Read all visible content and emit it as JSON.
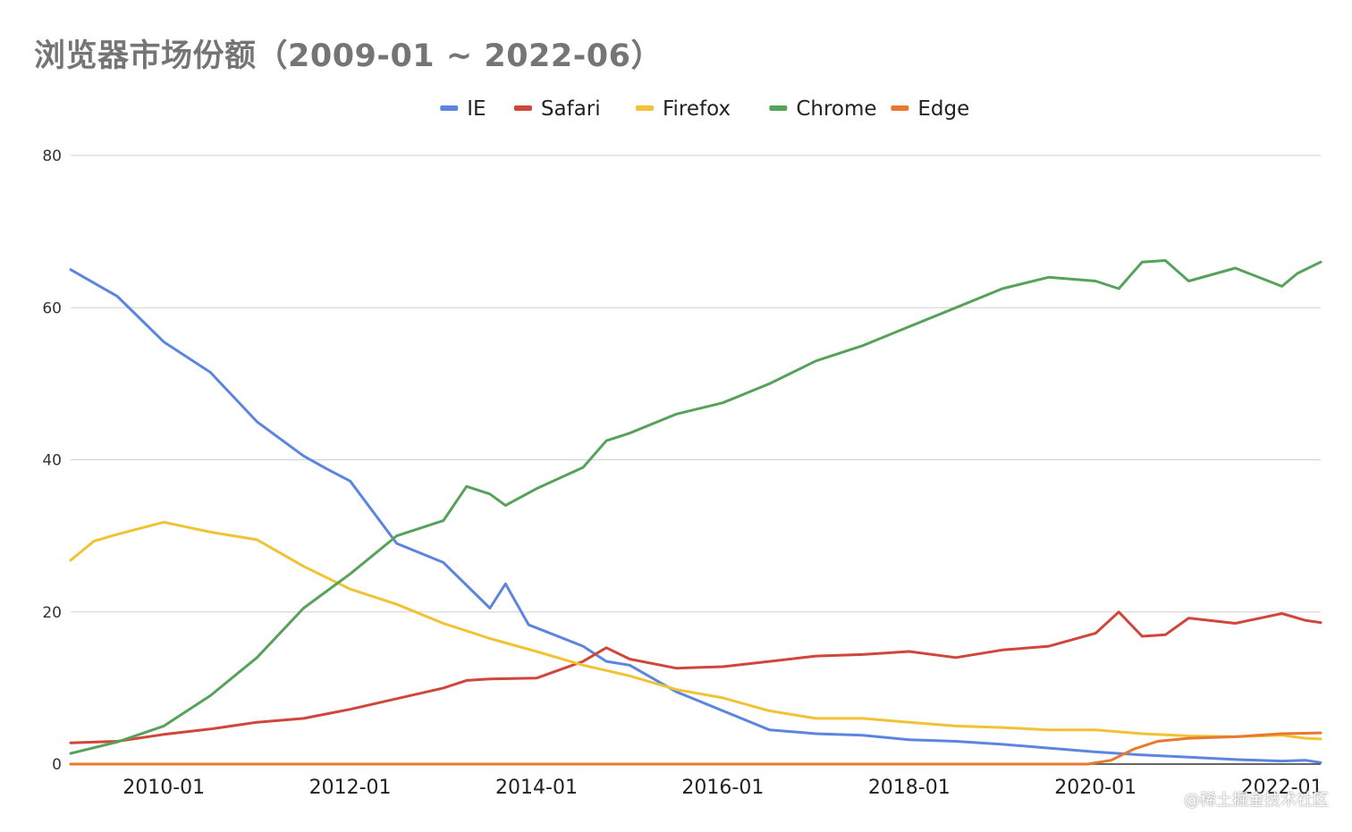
{
  "chart_data": {
    "type": "line",
    "title": "浏览器市场份额（2009-01 ~ 2022-06）",
    "xlabel": "",
    "ylabel": "",
    "x_start": "2009-01",
    "x_end": "2022-06",
    "x_tick_labels": [
      "2010-01",
      "2012-01",
      "2014-01",
      "2016-01",
      "2018-01",
      "2020-01",
      "2022-01"
    ],
    "y_ticks": [
      0,
      20,
      40,
      60,
      80
    ],
    "ylim": [
      0,
      80
    ],
    "grid": true,
    "legend_position": "top",
    "series": [
      {
        "name": "IE",
        "color": "#5b85df",
        "points": [
          [
            "2009-01",
            65.0
          ],
          [
            "2009-07",
            61.5
          ],
          [
            "2010-01",
            55.5
          ],
          [
            "2010-07",
            51.5
          ],
          [
            "2011-01",
            45.0
          ],
          [
            "2011-07",
            40.5
          ],
          [
            "2011-10",
            38.8
          ],
          [
            "2012-01",
            37.2
          ],
          [
            "2012-07",
            29.0
          ],
          [
            "2013-01",
            26.5
          ],
          [
            "2013-07",
            20.5
          ],
          [
            "2013-09",
            23.7
          ],
          [
            "2013-12",
            18.3
          ],
          [
            "2014-07",
            15.5
          ],
          [
            "2014-10",
            13.5
          ],
          [
            "2015-01",
            13.0
          ],
          [
            "2015-07",
            9.5
          ],
          [
            "2016-01",
            7.0
          ],
          [
            "2016-07",
            4.5
          ],
          [
            "2017-01",
            4.0
          ],
          [
            "2017-07",
            3.8
          ],
          [
            "2018-01",
            3.2
          ],
          [
            "2018-07",
            3.0
          ],
          [
            "2019-01",
            2.6
          ],
          [
            "2019-07",
            2.1
          ],
          [
            "2020-01",
            1.6
          ],
          [
            "2020-07",
            1.2
          ],
          [
            "2021-01",
            0.9
          ],
          [
            "2021-07",
            0.6
          ],
          [
            "2022-01",
            0.4
          ],
          [
            "2022-04",
            0.5
          ],
          [
            "2022-06",
            0.2
          ]
        ]
      },
      {
        "name": "Safari",
        "color": "#d0463a",
        "points": [
          [
            "2009-01",
            2.8
          ],
          [
            "2009-07",
            3.0
          ],
          [
            "2010-01",
            3.9
          ],
          [
            "2010-07",
            4.6
          ],
          [
            "2011-01",
            5.5
          ],
          [
            "2011-07",
            6.0
          ],
          [
            "2012-01",
            7.2
          ],
          [
            "2012-07",
            8.6
          ],
          [
            "2013-01",
            10.0
          ],
          [
            "2013-04",
            11.0
          ],
          [
            "2013-07",
            11.2
          ],
          [
            "2014-01",
            11.3
          ],
          [
            "2014-07",
            13.5
          ],
          [
            "2014-10",
            15.3
          ],
          [
            "2015-01",
            13.8
          ],
          [
            "2015-07",
            12.6
          ],
          [
            "2016-01",
            12.8
          ],
          [
            "2016-07",
            13.5
          ],
          [
            "2017-01",
            14.2
          ],
          [
            "2017-07",
            14.4
          ],
          [
            "2018-01",
            14.8
          ],
          [
            "2018-07",
            14.0
          ],
          [
            "2019-01",
            15.0
          ],
          [
            "2019-07",
            15.5
          ],
          [
            "2020-01",
            17.2
          ],
          [
            "2020-04",
            20.0
          ],
          [
            "2020-07",
            16.8
          ],
          [
            "2020-10",
            17.0
          ],
          [
            "2021-01",
            19.2
          ],
          [
            "2021-07",
            18.5
          ],
          [
            "2022-01",
            19.8
          ],
          [
            "2022-04",
            18.9
          ],
          [
            "2022-06",
            18.6
          ]
        ]
      },
      {
        "name": "Firefox",
        "color": "#f1c233",
        "points": [
          [
            "2009-01",
            26.8
          ],
          [
            "2009-04",
            29.3
          ],
          [
            "2009-07",
            30.2
          ],
          [
            "2010-01",
            31.8
          ],
          [
            "2010-07",
            30.5
          ],
          [
            "2011-01",
            29.5
          ],
          [
            "2011-07",
            26.0
          ],
          [
            "2012-01",
            23.0
          ],
          [
            "2012-07",
            21.0
          ],
          [
            "2013-01",
            18.5
          ],
          [
            "2013-07",
            16.5
          ],
          [
            "2014-01",
            14.8
          ],
          [
            "2014-07",
            13.0
          ],
          [
            "2015-01",
            11.6
          ],
          [
            "2015-07",
            9.8
          ],
          [
            "2016-01",
            8.7
          ],
          [
            "2016-07",
            7.0
          ],
          [
            "2017-01",
            6.0
          ],
          [
            "2017-07",
            6.0
          ],
          [
            "2018-01",
            5.5
          ],
          [
            "2018-07",
            5.0
          ],
          [
            "2019-01",
            4.8
          ],
          [
            "2019-07",
            4.5
          ],
          [
            "2020-01",
            4.5
          ],
          [
            "2020-07",
            4.0
          ],
          [
            "2021-01",
            3.7
          ],
          [
            "2021-07",
            3.6
          ],
          [
            "2022-01",
            3.8
          ],
          [
            "2022-04",
            3.4
          ],
          [
            "2022-06",
            3.3
          ]
        ]
      },
      {
        "name": "Chrome",
        "color": "#56a25a",
        "points": [
          [
            "2009-01",
            1.4
          ],
          [
            "2009-07",
            2.9
          ],
          [
            "2010-01",
            5.0
          ],
          [
            "2010-07",
            9.0
          ],
          [
            "2011-01",
            14.0
          ],
          [
            "2011-07",
            20.5
          ],
          [
            "2012-01",
            25.0
          ],
          [
            "2012-07",
            30.0
          ],
          [
            "2013-01",
            32.0
          ],
          [
            "2013-04",
            36.5
          ],
          [
            "2013-07",
            35.5
          ],
          [
            "2013-09",
            34.0
          ],
          [
            "2014-01",
            36.2
          ],
          [
            "2014-07",
            39.0
          ],
          [
            "2014-10",
            42.5
          ],
          [
            "2015-01",
            43.5
          ],
          [
            "2015-07",
            46.0
          ],
          [
            "2016-01",
            47.5
          ],
          [
            "2016-07",
            50.0
          ],
          [
            "2017-01",
            53.0
          ],
          [
            "2017-07",
            55.0
          ],
          [
            "2018-01",
            57.5
          ],
          [
            "2018-07",
            60.0
          ],
          [
            "2019-01",
            62.5
          ],
          [
            "2019-07",
            64.0
          ],
          [
            "2020-01",
            63.5
          ],
          [
            "2020-04",
            62.5
          ],
          [
            "2020-07",
            66.0
          ],
          [
            "2020-10",
            66.2
          ],
          [
            "2021-01",
            63.5
          ],
          [
            "2021-07",
            65.2
          ],
          [
            "2022-01",
            62.8
          ],
          [
            "2022-03",
            64.5
          ],
          [
            "2022-06",
            66.0
          ]
        ]
      },
      {
        "name": "Edge",
        "color": "#e8782d",
        "points": [
          [
            "2009-01",
            0.0
          ],
          [
            "2019-12",
            0.0
          ],
          [
            "2020-03",
            0.5
          ],
          [
            "2020-06",
            2.0
          ],
          [
            "2020-09",
            3.0
          ],
          [
            "2021-01",
            3.4
          ],
          [
            "2021-07",
            3.6
          ],
          [
            "2022-01",
            4.0
          ],
          [
            "2022-06",
            4.1
          ]
        ]
      }
    ]
  },
  "watermark": "@稀土掘金技术社区"
}
